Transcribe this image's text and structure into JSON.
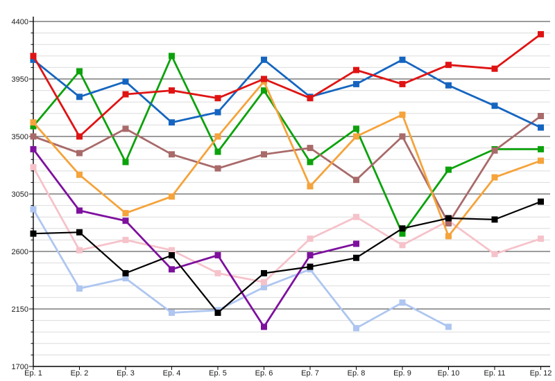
{
  "chart_data": {
    "type": "line",
    "title": "",
    "legend": "none",
    "grid": "major+minor",
    "marker": "square",
    "x_categories": [
      "Ep. 1",
      "Ep. 2",
      "Ep. 3",
      "Ep. 4",
      "Ep. 5",
      "Ep. 6",
      "Ep. 7",
      "Ep. 8",
      "Ep. 9",
      "Ep. 10",
      "Ep. 11",
      "Ep. 12"
    ],
    "y_axis": {
      "min": 1700,
      "max": 4400,
      "major_step": 450,
      "minor_step": 90,
      "tick_labels": [
        "1700",
        "2150",
        "2600",
        "3050",
        "3500",
        "3950",
        "4400"
      ]
    },
    "colors": {
      "minor_gridline": "#dcdcdc",
      "major_gridline": "#3a3a3a",
      "axis": "#000000",
      "background": "#ffffff"
    },
    "series": [
      {
        "name": "lightblue",
        "color": "#aec6f0",
        "values": [
          2930,
          2310,
          2390,
          2120,
          2140,
          2320,
          2460,
          2000,
          2200,
          2010,
          null,
          null
        ]
      },
      {
        "name": "pink",
        "color": "#f6c2ca",
        "values": [
          3260,
          2610,
          2690,
          2610,
          2430,
          2360,
          2700,
          2870,
          2650,
          2840,
          2580,
          2700
        ]
      },
      {
        "name": "purple",
        "color": "#7e109e",
        "values": [
          3400,
          2920,
          2840,
          2460,
          2570,
          2010,
          2570,
          2660,
          null,
          null,
          null,
          null
        ]
      },
      {
        "name": "green",
        "color": "#0ba20b",
        "values": [
          3580,
          4010,
          3300,
          4130,
          3380,
          3860,
          3300,
          3560,
          2740,
          3240,
          3400,
          3400
        ]
      },
      {
        "name": "brown",
        "color": "#a96a6a",
        "values": [
          3500,
          3370,
          3560,
          3360,
          3250,
          3360,
          3410,
          3160,
          3500,
          2820,
          3390,
          3660
        ]
      },
      {
        "name": "orange",
        "color": "#f5a33b",
        "values": [
          3610,
          3200,
          2900,
          3030,
          3500,
          3930,
          3110,
          3500,
          3670,
          2720,
          3180,
          3310
        ]
      },
      {
        "name": "blue",
        "color": "#1565c0",
        "values": [
          4100,
          3810,
          3930,
          3610,
          3690,
          4100,
          3810,
          3910,
          4100,
          3900,
          3740,
          3570
        ]
      },
      {
        "name": "red",
        "color": "#e01313",
        "values": [
          4130,
          3500,
          3830,
          3860,
          3800,
          3950,
          3800,
          4020,
          3910,
          4060,
          4030,
          4300
        ]
      },
      {
        "name": "black",
        "color": "#000000",
        "values": [
          2740,
          2750,
          2430,
          2570,
          2120,
          2430,
          2480,
          2550,
          2780,
          2860,
          2850,
          2990
        ]
      }
    ],
    "draw_order": "series array order, first = bottom"
  }
}
